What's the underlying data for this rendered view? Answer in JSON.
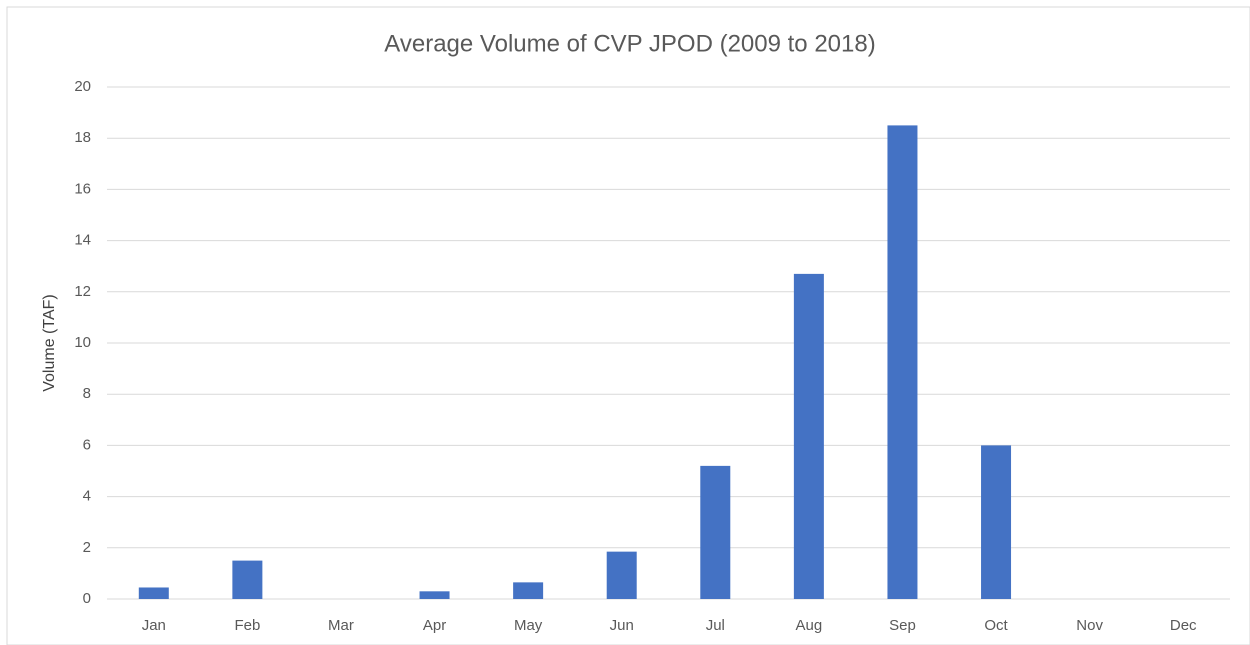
{
  "chart_data": {
    "type": "bar",
    "title": "Average Volume of CVP JPOD (2009 to 2018)",
    "y_label": "Volume (TAF)",
    "categories": [
      "Jan",
      "Feb",
      "Mar",
      "Apr",
      "May",
      "Jun",
      "Jul",
      "Aug",
      "Sep",
      "Oct",
      "Nov",
      "Dec"
    ],
    "values": [
      0.45,
      1.5,
      0,
      0.3,
      0.65,
      1.85,
      5.2,
      12.7,
      18.5,
      6.0,
      0,
      0
    ],
    "color": "#4472c4",
    "ylim": [
      0,
      20
    ],
    "yticks": [
      0,
      2,
      4,
      6,
      8,
      10,
      12,
      14,
      16,
      18,
      20
    ],
    "grid": true
  }
}
